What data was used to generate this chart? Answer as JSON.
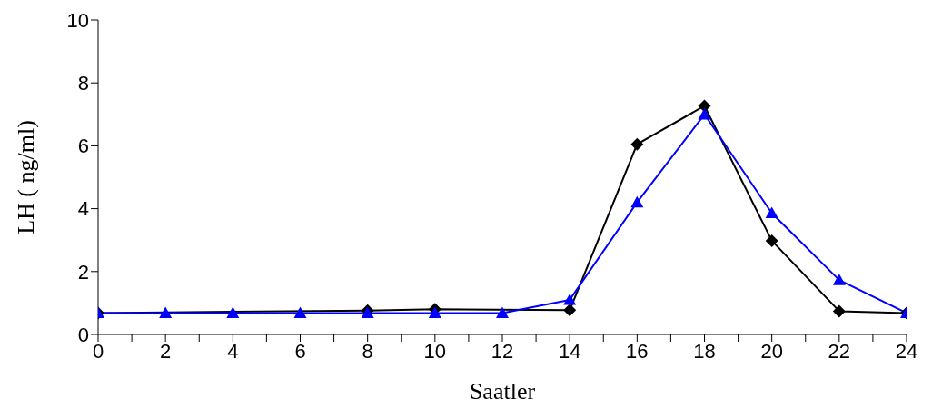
{
  "chart_data": {
    "type": "line",
    "xlabel": "Saatler",
    "ylabel": "LH ( ng/ml)",
    "x": [
      0,
      2,
      4,
      6,
      8,
      10,
      12,
      14,
      16,
      18,
      20,
      22,
      24
    ],
    "series": [
      {
        "color": "#000000",
        "marker": "diamond",
        "values": [
          0.68,
          null,
          null,
          null,
          0.76,
          0.8,
          null,
          0.77,
          6.05,
          7.27,
          2.98,
          0.74,
          0.68
        ]
      },
      {
        "color": "#0000ff",
        "marker": "triangle",
        "values": [
          0.68,
          0.68,
          0.68,
          0.68,
          0.68,
          0.68,
          0.68,
          1.1,
          4.2,
          7.0,
          3.86,
          1.73,
          0.68
        ]
      }
    ],
    "xlim": [
      0,
      24
    ],
    "xticks": [
      0,
      {
        "value": 1,
        "label": null
      },
      2,
      {
        "value": 3,
        "label": null
      },
      4,
      {
        "value": 5,
        "label": null
      },
      6,
      {
        "value": 7,
        "label": null
      },
      8,
      {
        "value": 9,
        "label": null
      },
      10,
      {
        "value": 11,
        "label": null
      },
      12,
      {
        "value": 13,
        "label": null
      },
      14,
      {
        "value": 15,
        "label": null
      },
      16,
      {
        "value": 17,
        "label": null
      },
      18,
      {
        "value": 19,
        "label": null
      },
      20,
      {
        "value": 21,
        "label": null
      },
      22,
      {
        "value": 23,
        "label": null
      },
      24
    ],
    "ylim": [
      0,
      10
    ],
    "yticks": [
      0,
      2,
      4,
      6,
      8,
      10
    ],
    "grid": false,
    "legend": false
  }
}
